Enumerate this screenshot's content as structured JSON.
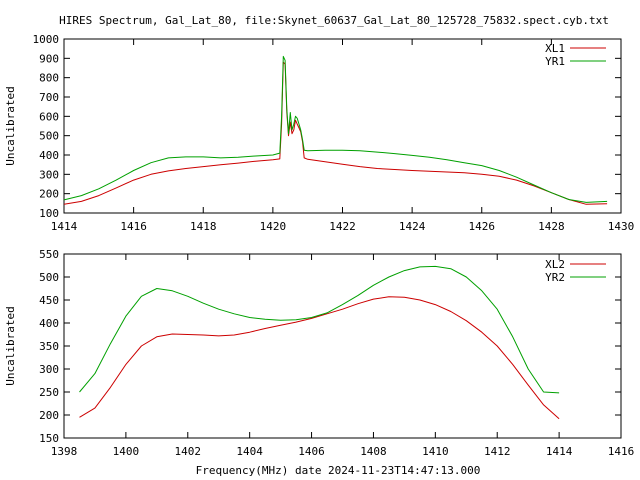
{
  "title": "HIRES Spectrum, Gal_Lat_80, file:Skynet_60637_Gal_Lat_80_125728_75832.spect.cyb.txt",
  "xlabel": "Frequency(MHz) date 2024-11-23T14:47:13.000",
  "colors": {
    "XL": "#cc0000",
    "YR": "#00a000"
  },
  "chart_data": [
    {
      "type": "line",
      "ylabel": "Uncalibrated",
      "xlim": [
        1414,
        1430
      ],
      "ylim": [
        100,
        1000
      ],
      "xticks": [
        "1414",
        "1416",
        "1418",
        "1420",
        "1422",
        "1424",
        "1426",
        "1428",
        "1430"
      ],
      "yticks": [
        "100",
        "200",
        "300",
        "400",
        "500",
        "600",
        "700",
        "800",
        "900",
        "1000"
      ],
      "legend": "top-right",
      "series": [
        {
          "name": "XL1",
          "color": "#cc0000",
          "points": [
            [
              1414.0,
              145
            ],
            [
              1414.5,
              160
            ],
            [
              1415.0,
              190
            ],
            [
              1415.5,
              230
            ],
            [
              1416.0,
              270
            ],
            [
              1416.5,
              300
            ],
            [
              1417.0,
              318
            ],
            [
              1417.5,
              330
            ],
            [
              1418.0,
              340
            ],
            [
              1418.5,
              350
            ],
            [
              1419.0,
              358
            ],
            [
              1419.5,
              368
            ],
            [
              1420.0,
              375
            ],
            [
              1420.2,
              380
            ],
            [
              1420.25,
              560
            ],
            [
              1420.3,
              880
            ],
            [
              1420.35,
              870
            ],
            [
              1420.4,
              620
            ],
            [
              1420.45,
              500
            ],
            [
              1420.5,
              570
            ],
            [
              1420.55,
              510
            ],
            [
              1420.6,
              530
            ],
            [
              1420.65,
              580
            ],
            [
              1420.7,
              560
            ],
            [
              1420.75,
              540
            ],
            [
              1420.8,
              520
            ],
            [
              1420.85,
              470
            ],
            [
              1420.9,
              385
            ],
            [
              1421.0,
              378
            ],
            [
              1421.5,
              365
            ],
            [
              1422.0,
              352
            ],
            [
              1422.5,
              340
            ],
            [
              1423.0,
              330
            ],
            [
              1423.5,
              325
            ],
            [
              1424.0,
              320
            ],
            [
              1424.5,
              316
            ],
            [
              1425.0,
              312
            ],
            [
              1425.5,
              308
            ],
            [
              1426.0,
              300
            ],
            [
              1426.5,
              290
            ],
            [
              1427.0,
              270
            ],
            [
              1427.5,
              240
            ],
            [
              1428.0,
              205
            ],
            [
              1428.5,
              170
            ],
            [
              1429.0,
              145
            ],
            [
              1429.6,
              148
            ]
          ]
        },
        {
          "name": "YR1",
          "color": "#00a000",
          "points": [
            [
              1414.0,
              168
            ],
            [
              1414.5,
              190
            ],
            [
              1415.0,
              225
            ],
            [
              1415.5,
              270
            ],
            [
              1416.0,
              320
            ],
            [
              1416.5,
              360
            ],
            [
              1417.0,
              385
            ],
            [
              1417.5,
              390
            ],
            [
              1418.0,
              390
            ],
            [
              1418.5,
              385
            ],
            [
              1419.0,
              388
            ],
            [
              1419.5,
              395
            ],
            [
              1420.0,
              400
            ],
            [
              1420.2,
              410
            ],
            [
              1420.25,
              600
            ],
            [
              1420.3,
              910
            ],
            [
              1420.35,
              890
            ],
            [
              1420.4,
              640
            ],
            [
              1420.45,
              510
            ],
            [
              1420.5,
              620
            ],
            [
              1420.55,
              530
            ],
            [
              1420.6,
              560
            ],
            [
              1420.65,
              600
            ],
            [
              1420.7,
              590
            ],
            [
              1420.75,
              560
            ],
            [
              1420.8,
              530
            ],
            [
              1420.85,
              480
            ],
            [
              1420.9,
              425
            ],
            [
              1421.0,
              422
            ],
            [
              1421.5,
              425
            ],
            [
              1422.0,
              425
            ],
            [
              1422.5,
              422
            ],
            [
              1423.0,
              415
            ],
            [
              1423.5,
              407
            ],
            [
              1424.0,
              398
            ],
            [
              1424.5,
              388
            ],
            [
              1425.0,
              375
            ],
            [
              1425.5,
              360
            ],
            [
              1426.0,
              345
            ],
            [
              1426.5,
              320
            ],
            [
              1427.0,
              285
            ],
            [
              1427.5,
              245
            ],
            [
              1428.0,
              205
            ],
            [
              1428.5,
              170
            ],
            [
              1429.0,
              155
            ],
            [
              1429.6,
              160
            ]
          ]
        }
      ]
    },
    {
      "type": "line",
      "ylabel": "Uncalibrated",
      "xlim": [
        1398,
        1416
      ],
      "ylim": [
        150,
        550
      ],
      "xticks": [
        "1398",
        "1400",
        "1402",
        "1404",
        "1406",
        "1408",
        "1410",
        "1412",
        "1414",
        "1416"
      ],
      "yticks": [
        "150",
        "200",
        "250",
        "300",
        "350",
        "400",
        "450",
        "500",
        "550"
      ],
      "legend": "top-right",
      "series": [
        {
          "name": "XL2",
          "color": "#cc0000",
          "points": [
            [
              1398.5,
              195
            ],
            [
              1399.0,
              215
            ],
            [
              1399.5,
              260
            ],
            [
              1400.0,
              310
            ],
            [
              1400.5,
              350
            ],
            [
              1401.0,
              370
            ],
            [
              1401.5,
              376
            ],
            [
              1402.0,
              375
            ],
            [
              1402.5,
              374
            ],
            [
              1403.0,
              372
            ],
            [
              1403.5,
              374
            ],
            [
              1404.0,
              380
            ],
            [
              1404.5,
              388
            ],
            [
              1405.0,
              395
            ],
            [
              1405.5,
              402
            ],
            [
              1406.0,
              410
            ],
            [
              1406.5,
              420
            ],
            [
              1407.0,
              430
            ],
            [
              1407.5,
              442
            ],
            [
              1408.0,
              452
            ],
            [
              1408.5,
              457
            ],
            [
              1409.0,
              456
            ],
            [
              1409.5,
              450
            ],
            [
              1410.0,
              440
            ],
            [
              1410.5,
              425
            ],
            [
              1411.0,
              405
            ],
            [
              1411.5,
              380
            ],
            [
              1412.0,
              350
            ],
            [
              1412.5,
              310
            ],
            [
              1413.0,
              265
            ],
            [
              1413.5,
              222
            ],
            [
              1414.0,
              192
            ]
          ]
        },
        {
          "name": "YR2",
          "color": "#00a000",
          "points": [
            [
              1398.5,
              250
            ],
            [
              1399.0,
              290
            ],
            [
              1399.5,
              355
            ],
            [
              1400.0,
              415
            ],
            [
              1400.5,
              458
            ],
            [
              1401.0,
              475
            ],
            [
              1401.5,
              470
            ],
            [
              1402.0,
              458
            ],
            [
              1402.5,
              443
            ],
            [
              1403.0,
              430
            ],
            [
              1403.5,
              420
            ],
            [
              1404.0,
              412
            ],
            [
              1404.5,
              408
            ],
            [
              1405.0,
              406
            ],
            [
              1405.5,
              407
            ],
            [
              1406.0,
              412
            ],
            [
              1406.5,
              422
            ],
            [
              1407.0,
              440
            ],
            [
              1407.5,
              460
            ],
            [
              1408.0,
              482
            ],
            [
              1408.5,
              500
            ],
            [
              1409.0,
              514
            ],
            [
              1409.5,
              522
            ],
            [
              1410.0,
              523
            ],
            [
              1410.5,
              518
            ],
            [
              1411.0,
              500
            ],
            [
              1411.5,
              470
            ],
            [
              1412.0,
              430
            ],
            [
              1412.5,
              370
            ],
            [
              1413.0,
              300
            ],
            [
              1413.5,
              250
            ],
            [
              1414.0,
              248
            ]
          ]
        }
      ]
    }
  ]
}
